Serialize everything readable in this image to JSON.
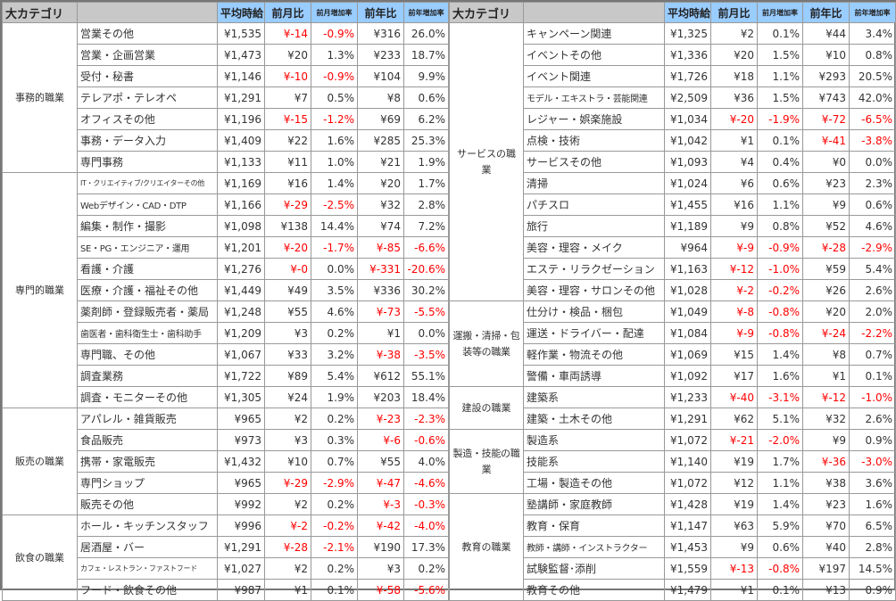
{
  "headers": {
    "category": "大カテゴリ",
    "name": "",
    "avg": "平均時給",
    "mom": "前月比",
    "mom_rate": "前月増加率",
    "yoy": "前年比",
    "yoy_rate": "前年増加率"
  },
  "colors": {
    "header_blue": "#99ccff",
    "header_gray": "#c8c8c8",
    "negative": "#ff0000"
  },
  "left": [
    {
      "category": "事務的職業",
      "rows": [
        [
          "営業その他",
          "¥1,535",
          "¥-14",
          "-0.9%",
          "¥316",
          "26.0%"
        ],
        [
          "営業・企画営業",
          "¥1,473",
          "¥20",
          "1.3%",
          "¥233",
          "18.7%"
        ],
        [
          "受付・秘書",
          "¥1,146",
          "¥-10",
          "-0.9%",
          "¥104",
          "9.9%"
        ],
        [
          "テレアポ・テレオペ",
          "¥1,291",
          "¥7",
          "0.5%",
          "¥8",
          "0.6%"
        ],
        [
          "オフィスその他",
          "¥1,196",
          "¥-15",
          "-1.2%",
          "¥69",
          "6.2%"
        ],
        [
          "事務・データ入力",
          "¥1,409",
          "¥22",
          "1.6%",
          "¥285",
          "25.3%"
        ],
        [
          "専門事務",
          "¥1,133",
          "¥11",
          "1.0%",
          "¥21",
          "1.9%"
        ]
      ]
    },
    {
      "category": "専門的職業",
      "rows": [
        [
          "IT・クリエイティブ/クリエイターその他",
          "¥1,169",
          "¥16",
          "1.4%",
          "¥20",
          "1.7%"
        ],
        [
          "Webデザイン・CAD・DTP",
          "¥1,166",
          "¥-29",
          "-2.5%",
          "¥32",
          "2.8%"
        ],
        [
          "編集・制作・撮影",
          "¥1,098",
          "¥138",
          "14.4%",
          "¥74",
          "7.2%"
        ],
        [
          "SE・PG・エンジニア・運用",
          "¥1,201",
          "¥-20",
          "-1.7%",
          "¥-85",
          "-6.6%"
        ],
        [
          "看護・介護",
          "¥1,276",
          "¥-0",
          "0.0%",
          "¥-331",
          "-20.6%"
        ],
        [
          "医療・介護・福祉その他",
          "¥1,449",
          "¥49",
          "3.5%",
          "¥336",
          "30.2%"
        ],
        [
          "薬剤師・登録販売者・薬局",
          "¥1,248",
          "¥55",
          "4.6%",
          "¥-73",
          "-5.5%"
        ],
        [
          "歯医者・歯科衛生士・歯科助手",
          "¥1,209",
          "¥3",
          "0.2%",
          "¥1",
          "0.0%"
        ],
        [
          "専門職、その他",
          "¥1,067",
          "¥33",
          "3.2%",
          "¥-38",
          "-3.5%"
        ],
        [
          "調査業務",
          "¥1,722",
          "¥89",
          "5.4%",
          "¥612",
          "55.1%"
        ],
        [
          "調査・モニターその他",
          "¥1,305",
          "¥24",
          "1.9%",
          "¥203",
          "18.4%"
        ]
      ]
    },
    {
      "category": "販売の職業",
      "rows": [
        [
          "アパレル・雑貨販売",
          "¥965",
          "¥2",
          "0.2%",
          "¥-23",
          "-2.3%"
        ],
        [
          "食品販売",
          "¥973",
          "¥3",
          "0.3%",
          "¥-6",
          "-0.6%"
        ],
        [
          "携帯・家電販売",
          "¥1,432",
          "¥10",
          "0.7%",
          "¥55",
          "4.0%"
        ],
        [
          "専門ショップ",
          "¥965",
          "¥-29",
          "-2.9%",
          "¥-47",
          "-4.6%"
        ],
        [
          "販売その他",
          "¥992",
          "¥2",
          "0.2%",
          "¥-3",
          "-0.3%"
        ]
      ]
    },
    {
      "category": "飲食の職業",
      "rows": [
        [
          "ホール・キッチンスタッフ",
          "¥996",
          "¥-2",
          "-0.2%",
          "¥-42",
          "-4.0%"
        ],
        [
          "居酒屋・バー",
          "¥1,291",
          "¥-28",
          "-2.1%",
          "¥190",
          "17.3%"
        ],
        [
          "カフェ・レストラン・ファストフード",
          "¥1,027",
          "¥2",
          "0.2%",
          "¥3",
          "0.2%"
        ],
        [
          "フード・飲食その他",
          "¥987",
          "¥1",
          "0.1%",
          "¥-58",
          "-5.6%"
        ]
      ]
    }
  ],
  "right": [
    {
      "category": "サービスの職業",
      "rows": [
        [
          "キャンペーン関連",
          "¥1,325",
          "¥2",
          "0.1%",
          "¥44",
          "3.4%"
        ],
        [
          "イベントその他",
          "¥1,336",
          "¥20",
          "1.5%",
          "¥10",
          "0.8%"
        ],
        [
          "イベント関連",
          "¥1,726",
          "¥18",
          "1.1%",
          "¥293",
          "20.5%"
        ],
        [
          "モデル・エキストラ・芸能関連",
          "¥2,509",
          "¥36",
          "1.5%",
          "¥743",
          "42.0%"
        ],
        [
          "レジャー・娯楽施設",
          "¥1,034",
          "¥-20",
          "-1.9%",
          "¥-72",
          "-6.5%"
        ],
        [
          "点検・技術",
          "¥1,042",
          "¥1",
          "0.1%",
          "¥-41",
          "-3.8%"
        ],
        [
          "サービスその他",
          "¥1,093",
          "¥4",
          "0.4%",
          "¥0",
          "0.0%"
        ],
        [
          "清掃",
          "¥1,024",
          "¥6",
          "0.6%",
          "¥23",
          "2.3%"
        ],
        [
          "パチスロ",
          "¥1,455",
          "¥16",
          "1.1%",
          "¥9",
          "0.6%"
        ],
        [
          "旅行",
          "¥1,189",
          "¥9",
          "0.8%",
          "¥52",
          "4.6%"
        ],
        [
          "美容・理容・メイク",
          "¥964",
          "¥-9",
          "-0.9%",
          "¥-28",
          "-2.9%"
        ],
        [
          "エステ・リラクゼーション",
          "¥1,163",
          "¥-12",
          "-1.0%",
          "¥59",
          "5.4%"
        ],
        [
          "美容・理容・サロンその他",
          "¥1,028",
          "¥-2",
          "-0.2%",
          "¥26",
          "2.6%"
        ]
      ]
    },
    {
      "category": "運搬・清掃・包装等の職業",
      "rows": [
        [
          "仕分け・検品・梱包",
          "¥1,049",
          "¥-8",
          "-0.8%",
          "¥20",
          "2.0%"
        ],
        [
          "運送・ドライバー・配達",
          "¥1,084",
          "¥-9",
          "-0.8%",
          "¥-24",
          "-2.2%"
        ],
        [
          "軽作業・物流その他",
          "¥1,069",
          "¥15",
          "1.4%",
          "¥8",
          "0.7%"
        ],
        [
          "警備・車両誘導",
          "¥1,092",
          "¥17",
          "1.6%",
          "¥1",
          "0.1%"
        ]
      ]
    },
    {
      "category": "建設の職業",
      "rows": [
        [
          "建築系",
          "¥1,233",
          "¥-40",
          "-3.1%",
          "¥-12",
          "-1.0%"
        ],
        [
          "建築・土木その他",
          "¥1,291",
          "¥62",
          "5.1%",
          "¥32",
          "2.6%"
        ]
      ]
    },
    {
      "category": "製造・技能の職業",
      "rows": [
        [
          "製造系",
          "¥1,072",
          "¥-21",
          "-2.0%",
          "¥9",
          "0.9%"
        ],
        [
          "技能系",
          "¥1,140",
          "¥19",
          "1.7%",
          "¥-36",
          "-3.0%"
        ],
        [
          "工場・製造その他",
          "¥1,072",
          "¥12",
          "1.1%",
          "¥38",
          "3.6%"
        ]
      ]
    },
    {
      "category": "教育の職業",
      "rows": [
        [
          "塾講師・家庭教師",
          "¥1,428",
          "¥19",
          "1.4%",
          "¥23",
          "1.6%"
        ],
        [
          "教育・保育",
          "¥1,147",
          "¥63",
          "5.9%",
          "¥70",
          "6.5%"
        ],
        [
          "教師・講師・インストラクター",
          "¥1,453",
          "¥9",
          "0.6%",
          "¥40",
          "2.8%"
        ],
        [
          "試験監督･添削",
          "¥1,559",
          "¥-13",
          "-0.8%",
          "¥197",
          "14.5%"
        ],
        [
          "教育その他",
          "¥1,479",
          "¥1",
          "0.1%",
          "¥13",
          "0.9%"
        ]
      ]
    }
  ]
}
